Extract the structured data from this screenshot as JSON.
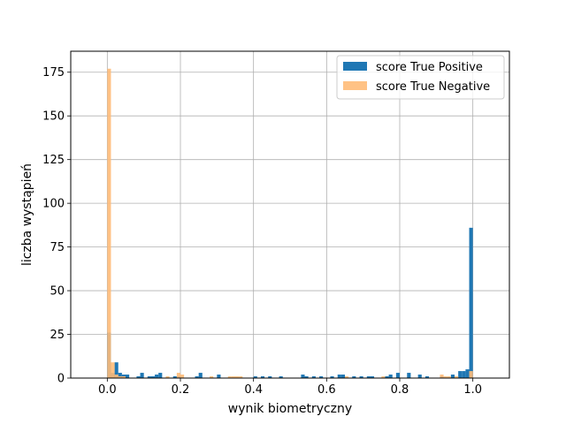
{
  "chart_data": {
    "type": "bar",
    "title": "",
    "xlabel": "wynik biometryczny",
    "ylabel": "liczba wystąpień",
    "xlim": [
      -0.1,
      1.1
    ],
    "ylim": [
      0,
      187
    ],
    "grid": true,
    "legend_position": "top-right",
    "bin_width": 0.01,
    "x_ticks": [
      0.0,
      0.2,
      0.4,
      0.6,
      0.8,
      1.0
    ],
    "x_tick_labels": [
      "0.0",
      "0.2",
      "0.4",
      "0.6",
      "0.8",
      "1.0"
    ],
    "y_ticks": [
      0,
      25,
      50,
      75,
      100,
      125,
      150,
      175
    ],
    "y_tick_labels": [
      "0",
      "25",
      "50",
      "75",
      "100",
      "125",
      "150",
      "175"
    ],
    "series": [
      {
        "name": "score True Positive",
        "color": "#1f77b4",
        "opacity": 1.0,
        "bins": [
          [
            0.0,
            26
          ],
          [
            0.01,
            3
          ],
          [
            0.02,
            9
          ],
          [
            0.03,
            3
          ],
          [
            0.04,
            2
          ],
          [
            0.05,
            2
          ],
          [
            0.08,
            1
          ],
          [
            0.09,
            3
          ],
          [
            0.11,
            1
          ],
          [
            0.12,
            1
          ],
          [
            0.13,
            2
          ],
          [
            0.14,
            3
          ],
          [
            0.18,
            1
          ],
          [
            0.19,
            1
          ],
          [
            0.24,
            1
          ],
          [
            0.25,
            3
          ],
          [
            0.3,
            2
          ],
          [
            0.4,
            1
          ],
          [
            0.42,
            1
          ],
          [
            0.44,
            1
          ],
          [
            0.47,
            1
          ],
          [
            0.53,
            2
          ],
          [
            0.54,
            1
          ],
          [
            0.56,
            1
          ],
          [
            0.58,
            1
          ],
          [
            0.61,
            1
          ],
          [
            0.63,
            2
          ],
          [
            0.64,
            2
          ],
          [
            0.67,
            1
          ],
          [
            0.69,
            1
          ],
          [
            0.71,
            1
          ],
          [
            0.72,
            1
          ],
          [
            0.76,
            1
          ],
          [
            0.77,
            2
          ],
          [
            0.79,
            3
          ],
          [
            0.82,
            3
          ],
          [
            0.85,
            2
          ],
          [
            0.87,
            1
          ],
          [
            0.91,
            1
          ],
          [
            0.94,
            2
          ],
          [
            0.96,
            4
          ],
          [
            0.97,
            4
          ],
          [
            0.98,
            5
          ],
          [
            0.99,
            86
          ]
        ]
      },
      {
        "name": "score True Negative",
        "color": "#ffbb78",
        "opacity": 0.9,
        "bins": [
          [
            0.0,
            177
          ],
          [
            0.01,
            9
          ],
          [
            0.02,
            2
          ],
          [
            0.03,
            1
          ],
          [
            0.04,
            1
          ],
          [
            0.16,
            1
          ],
          [
            0.19,
            3
          ],
          [
            0.2,
            2
          ],
          [
            0.28,
            1
          ],
          [
            0.33,
            1
          ],
          [
            0.34,
            1
          ],
          [
            0.35,
            1
          ],
          [
            0.36,
            1
          ],
          [
            0.65,
            1
          ],
          [
            0.75,
            1
          ],
          [
            0.91,
            2
          ],
          [
            0.92,
            1
          ],
          [
            0.93,
            1
          ],
          [
            0.95,
            1
          ],
          [
            0.99,
            4
          ]
        ]
      }
    ]
  }
}
